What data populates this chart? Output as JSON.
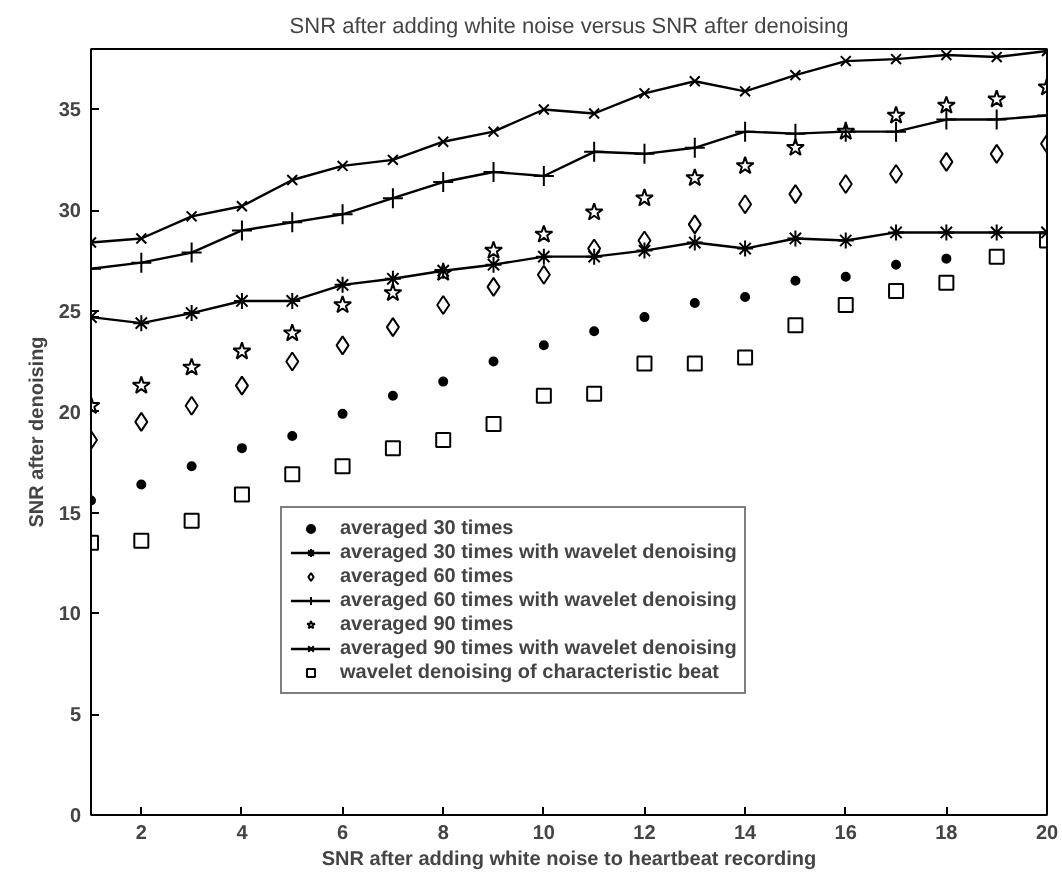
{
  "chart_data": {
    "type": "line",
    "title": "SNR after adding white noise versus SNR after denoising",
    "xlabel": "SNR after adding white noise to heartbeat recording",
    "ylabel": "SNR after denoising",
    "x": [
      1,
      2,
      3,
      4,
      5,
      6,
      7,
      8,
      9,
      10,
      11,
      12,
      13,
      14,
      15,
      16,
      17,
      18,
      19,
      20
    ],
    "xlim": [
      1,
      20
    ],
    "ylim": [
      0,
      38
    ],
    "xticks": [
      2,
      4,
      6,
      8,
      10,
      12,
      14,
      16,
      18,
      20
    ],
    "yticks": [
      0,
      5,
      10,
      15,
      20,
      25,
      30,
      35
    ],
    "grid": false,
    "legend": "bottom",
    "series": [
      {
        "name": "averaged 30 times",
        "type": "scatter",
        "marker": "circle",
        "color": "#000000",
        "values": [
          15.6,
          16.4,
          17.3,
          18.2,
          18.8,
          19.9,
          20.8,
          21.5,
          22.5,
          23.3,
          24.0,
          24.7,
          25.4,
          25.7,
          26.5,
          26.7,
          27.3,
          27.6,
          null,
          null
        ]
      },
      {
        "name": "averaged 30 times with wavelet denoising",
        "marker": "cross",
        "color": "#000000",
        "values": [
          24.7,
          24.4,
          24.9,
          25.5,
          25.5,
          26.3,
          26.6,
          27.0,
          27.3,
          27.7,
          27.7,
          28.0,
          28.4,
          28.1,
          28.6,
          28.5,
          28.9,
          28.9,
          28.9,
          28.9
        ]
      },
      {
        "name": "averaged 60 times",
        "type": "scatter",
        "marker": "diamond",
        "color": "#000000",
        "values": [
          18.6,
          19.5,
          20.3,
          21.3,
          22.5,
          23.3,
          24.2,
          25.3,
          26.2,
          26.8,
          28.1,
          28.5,
          29.3,
          30.3,
          30.8,
          31.3,
          31.8,
          32.4,
          32.8,
          33.3
        ]
      },
      {
        "name": "averaged 60 times with wavelet denoising",
        "marker": "cross",
        "color": "#000000",
        "values": [
          27.1,
          27.4,
          27.9,
          29.0,
          29.4,
          29.8,
          30.6,
          31.4,
          31.9,
          31.7,
          32.9,
          32.8,
          33.1,
          33.9,
          33.8,
          33.9,
          33.9,
          34.5,
          34.5,
          34.7
        ]
      },
      {
        "name": "averaged 90 times",
        "type": "scatter",
        "marker": "star",
        "color": "#000000",
        "values": [
          20.3,
          21.3,
          22.2,
          23.0,
          23.9,
          25.3,
          25.9,
          26.9,
          28.0,
          28.8,
          29.9,
          30.6,
          31.6,
          32.2,
          33.1,
          33.9,
          34.7,
          35.2,
          35.5,
          36.1
        ]
      },
      {
        "name": "averaged 90 times with wavelet denoising",
        "marker": "x",
        "color": "#000000",
        "values": [
          28.4,
          28.6,
          29.7,
          30.2,
          31.5,
          32.2,
          32.5,
          33.4,
          33.9,
          35.0,
          34.8,
          35.8,
          36.4,
          35.9,
          36.7,
          37.4,
          37.5,
          37.7,
          37.6,
          37.9
        ]
      },
      {
        "name": "wavelet denoising of characteristic beat",
        "type": "scatter",
        "marker": "square",
        "color": "#000000",
        "values": [
          13.5,
          13.6,
          14.6,
          15.9,
          16.9,
          17.3,
          18.2,
          18.6,
          19.4,
          20.8,
          20.9,
          22.4,
          22.4,
          22.7,
          24.3,
          25.3,
          26.0,
          26.4,
          27.7,
          28.5
        ]
      }
    ]
  }
}
